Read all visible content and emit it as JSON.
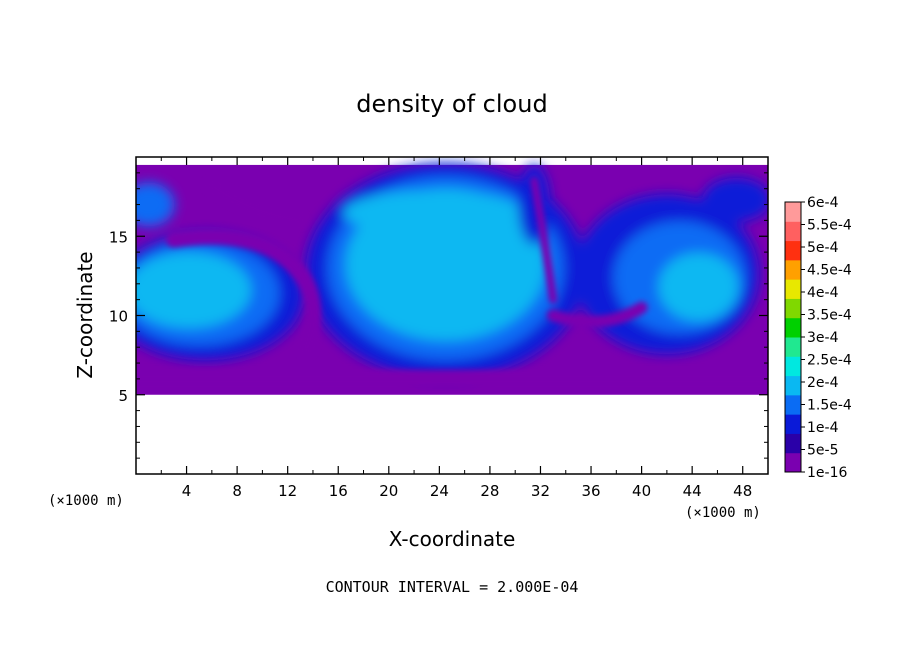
{
  "chart_data": {
    "type": "heatmap",
    "title": "density of cloud",
    "xlabel": "X-coordinate",
    "ylabel": "Z-coordinate",
    "x_unit": "(×1000 m)",
    "y_unit": "(×1000 m)",
    "note": "CONTOUR INTERVAL = 2.000E-04",
    "xlim": [
      0,
      50
    ],
    "ylim": [
      0,
      20
    ],
    "xticks": [
      4,
      8,
      12,
      16,
      20,
      24,
      28,
      32,
      36,
      40,
      44,
      48
    ],
    "yticks": [
      5,
      10,
      15
    ],
    "data_region": {
      "x": [
        0,
        50
      ],
      "z": [
        5,
        19.5
      ]
    },
    "grid": false,
    "legend_position": "right",
    "colorbar": {
      "labels": [
        "1e-16",
        "5e-5",
        "1e-4",
        "1.5e-4",
        "2e-4",
        "2.5e-4",
        "3e-4",
        "3.5e-4",
        "4e-4",
        "4.5e-4",
        "5e-4",
        "5.5e-4",
        "6e-4"
      ],
      "colors": [
        "#7a00b0",
        "#2a00a8",
        "#0a1ad8",
        "#0a6cf4",
        "#0ab8f2",
        "#00e8e0",
        "#20e890",
        "#00d000",
        "#80d800",
        "#e8e800",
        "#ffa000",
        "#ff3010",
        "#ff6060",
        "#ff9a9a"
      ]
    },
    "features": [
      {
        "name": "cloud-left",
        "x_center": 4,
        "z_center": 11.5,
        "level": "2e-4"
      },
      {
        "name": "cloud-center",
        "x_center": 24,
        "z_center": 13,
        "level": "2e-4"
      },
      {
        "name": "cloud-right",
        "x_center": 42,
        "z_center": 13,
        "level": "1.5e-4"
      },
      {
        "name": "dry-intrusion",
        "x_center": 13,
        "z_center": 11,
        "level": "1e-16"
      },
      {
        "name": "cloud-top-layer",
        "x_center": 25,
        "z_center": 18.5,
        "level": "1e-16"
      }
    ]
  }
}
